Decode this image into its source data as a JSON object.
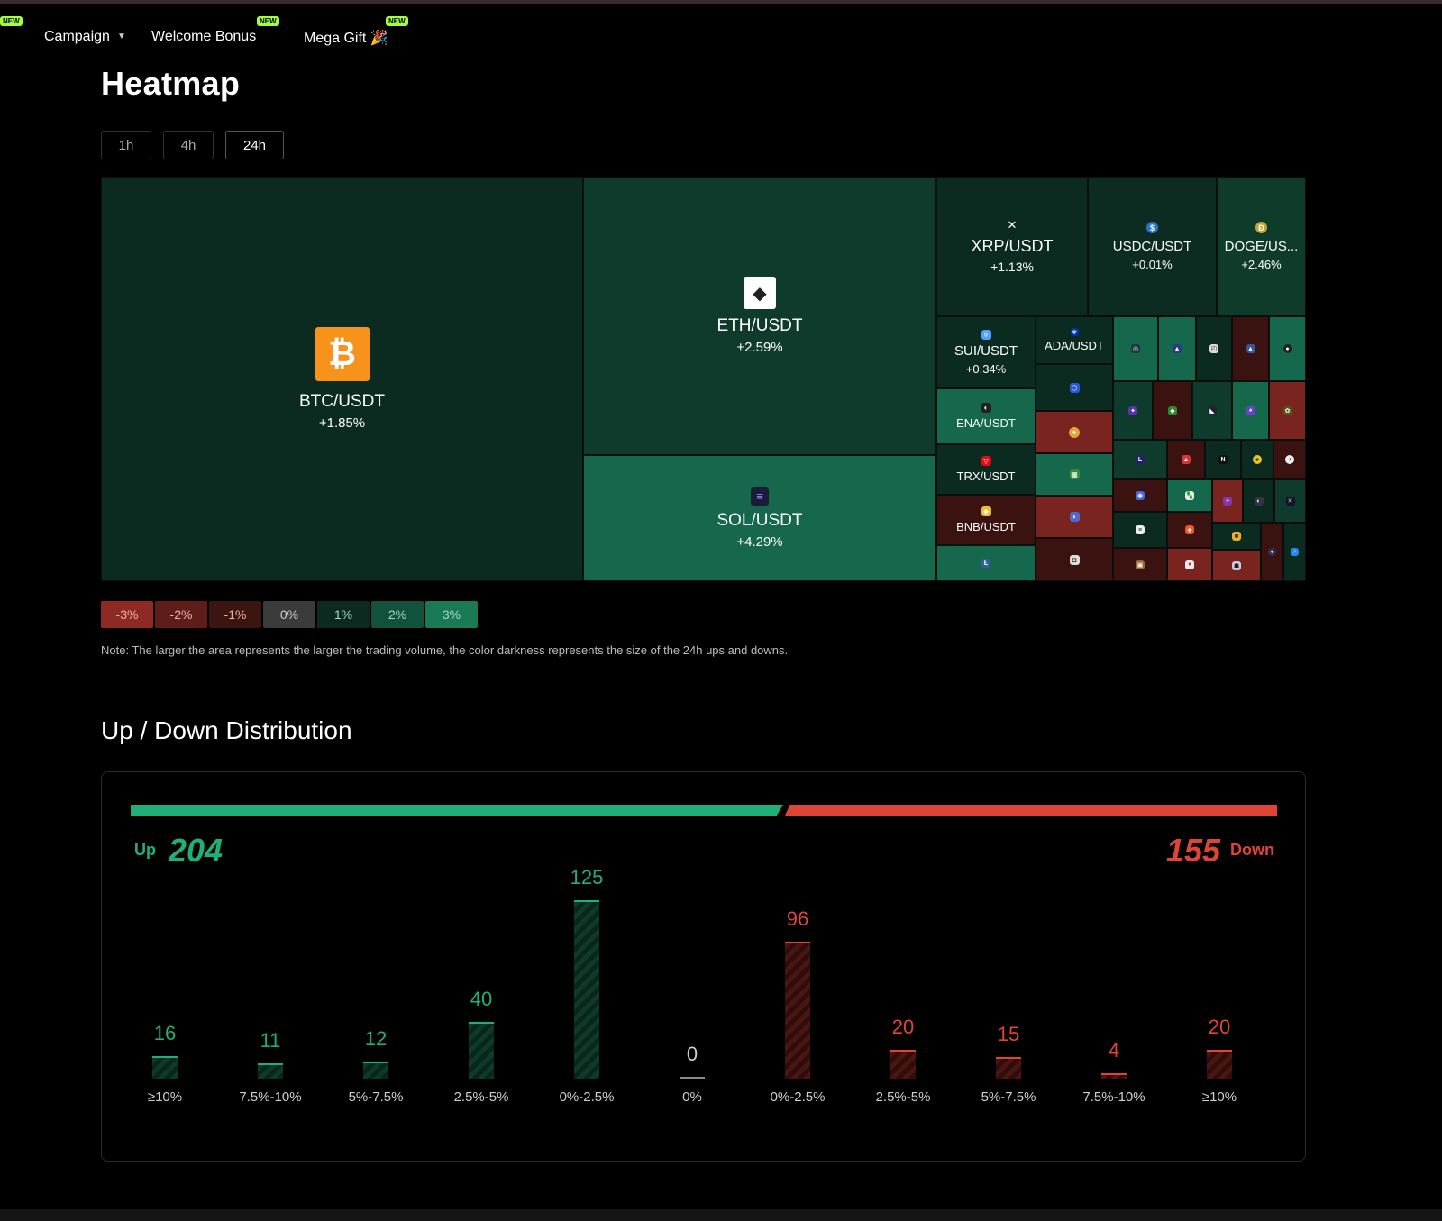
{
  "nav": {
    "items": [
      {
        "label": "Campaign",
        "has_caret": true,
        "badge": ""
      },
      {
        "label": "Welcome Bonus",
        "has_caret": false,
        "badge": "NEW"
      },
      {
        "label": "Mega Gift 🎉",
        "has_caret": false,
        "badge": "NEW"
      }
    ],
    "left_badge": "NEW"
  },
  "page_title": "Heatmap",
  "timeframes": [
    {
      "label": "1h",
      "active": false
    },
    {
      "label": "4h",
      "active": false
    },
    {
      "label": "24h",
      "active": true
    }
  ],
  "heatmap": {
    "tiles": [
      {
        "symbol": "BTC/USDT",
        "change": "+1.85%",
        "icon": "bitcoin-icon"
      },
      {
        "symbol": "ETH/USDT",
        "change": "+2.59%",
        "icon": "ethereum-icon"
      },
      {
        "symbol": "SOL/USDT",
        "change": "+4.29%",
        "icon": "solana-icon"
      },
      {
        "symbol": "XRP/USDT",
        "change": "+1.13%",
        "icon": "xrp-icon"
      },
      {
        "symbol": "USDC/USDT",
        "change": "+0.01%",
        "icon": "usdc-icon"
      },
      {
        "symbol": "DOGE/US...",
        "change": "+2.46%",
        "icon": "doge-icon"
      },
      {
        "symbol": "SUI/USDT",
        "change": "+0.34%",
        "icon": "sui-icon"
      },
      {
        "symbol": "ADA/USDT",
        "change": "",
        "icon": "ada-icon"
      },
      {
        "symbol": "ENA/USDT",
        "change": "",
        "icon": "ena-icon"
      },
      {
        "symbol": "TRX/USDT",
        "change": "",
        "icon": "trx-icon"
      },
      {
        "symbol": "BNB/USDT",
        "change": "",
        "icon": "bnb-icon"
      }
    ]
  },
  "legend": [
    "-3%",
    "-2%",
    "-1%",
    "0%",
    "1%",
    "2%",
    "3%"
  ],
  "legend_colors": [
    "#8e2a24",
    "#5e1d19",
    "#3a1512",
    "#3b3b3b",
    "#0d2a20",
    "#12513b",
    "#1a7a55"
  ],
  "note": "Note: The larger the area represents the larger the trading volume, the color darkness represents the size of the 24h ups and downs.",
  "distribution": {
    "title": "Up / Down Distribution",
    "up_label": "Up",
    "up_count": "204",
    "down_label": "Down",
    "down_count": "155",
    "colors": {
      "up": "#1fb07a",
      "down": "#e04436",
      "neutral": "#cccccc"
    }
  },
  "chart_data": {
    "type": "bar",
    "categories": [
      "≥10%",
      "7.5%-10%",
      "5%-7.5%",
      "2.5%-5%",
      "0%-2.5%",
      "0%",
      "0%-2.5%",
      "2.5%-5%",
      "5%-7.5%",
      "7.5%-10%",
      "≥10%"
    ],
    "values": [
      16,
      11,
      12,
      40,
      125,
      0,
      96,
      20,
      15,
      4,
      20
    ],
    "directions": [
      "up",
      "up",
      "up",
      "up",
      "up",
      "flat",
      "down",
      "down",
      "down",
      "down",
      "down"
    ],
    "ylim": [
      0,
      125
    ]
  }
}
